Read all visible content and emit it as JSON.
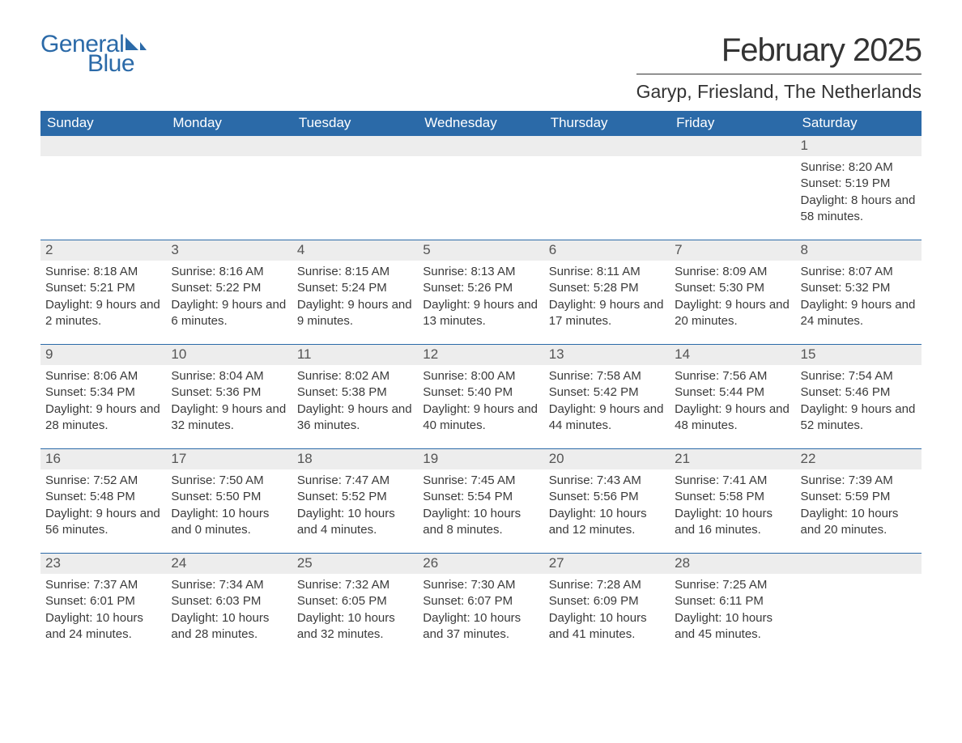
{
  "brand": {
    "word1": "General",
    "word2": "Blue"
  },
  "title": "February 2025",
  "location": "Garyp, Friesland, The Netherlands",
  "colors": {
    "header_bg": "#2b6aa8",
    "header_text": "#ffffff",
    "day_strip_bg": "#ededed",
    "text": "#3a3a3a",
    "divider": "#333333",
    "page_bg": "#ffffff"
  },
  "weekdays": [
    "Sunday",
    "Monday",
    "Tuesday",
    "Wednesday",
    "Thursday",
    "Friday",
    "Saturday"
  ],
  "weeks": [
    [
      {
        "day": "",
        "lines": []
      },
      {
        "day": "",
        "lines": []
      },
      {
        "day": "",
        "lines": []
      },
      {
        "day": "",
        "lines": []
      },
      {
        "day": "",
        "lines": []
      },
      {
        "day": "",
        "lines": []
      },
      {
        "day": "1",
        "lines": [
          "Sunrise: 8:20 AM",
          "Sunset: 5:19 PM",
          "Daylight: 8 hours and 58 minutes."
        ]
      }
    ],
    [
      {
        "day": "2",
        "lines": [
          "Sunrise: 8:18 AM",
          "Sunset: 5:21 PM",
          "Daylight: 9 hours and 2 minutes."
        ]
      },
      {
        "day": "3",
        "lines": [
          "Sunrise: 8:16 AM",
          "Sunset: 5:22 PM",
          "Daylight: 9 hours and 6 minutes."
        ]
      },
      {
        "day": "4",
        "lines": [
          "Sunrise: 8:15 AM",
          "Sunset: 5:24 PM",
          "Daylight: 9 hours and 9 minutes."
        ]
      },
      {
        "day": "5",
        "lines": [
          "Sunrise: 8:13 AM",
          "Sunset: 5:26 PM",
          "Daylight: 9 hours and 13 minutes."
        ]
      },
      {
        "day": "6",
        "lines": [
          "Sunrise: 8:11 AM",
          "Sunset: 5:28 PM",
          "Daylight: 9 hours and 17 minutes."
        ]
      },
      {
        "day": "7",
        "lines": [
          "Sunrise: 8:09 AM",
          "Sunset: 5:30 PM",
          "Daylight: 9 hours and 20 minutes."
        ]
      },
      {
        "day": "8",
        "lines": [
          "Sunrise: 8:07 AM",
          "Sunset: 5:32 PM",
          "Daylight: 9 hours and 24 minutes."
        ]
      }
    ],
    [
      {
        "day": "9",
        "lines": [
          "Sunrise: 8:06 AM",
          "Sunset: 5:34 PM",
          "Daylight: 9 hours and 28 minutes."
        ]
      },
      {
        "day": "10",
        "lines": [
          "Sunrise: 8:04 AM",
          "Sunset: 5:36 PM",
          "Daylight: 9 hours and 32 minutes."
        ]
      },
      {
        "day": "11",
        "lines": [
          "Sunrise: 8:02 AM",
          "Sunset: 5:38 PM",
          "Daylight: 9 hours and 36 minutes."
        ]
      },
      {
        "day": "12",
        "lines": [
          "Sunrise: 8:00 AM",
          "Sunset: 5:40 PM",
          "Daylight: 9 hours and 40 minutes."
        ]
      },
      {
        "day": "13",
        "lines": [
          "Sunrise: 7:58 AM",
          "Sunset: 5:42 PM",
          "Daylight: 9 hours and 44 minutes."
        ]
      },
      {
        "day": "14",
        "lines": [
          "Sunrise: 7:56 AM",
          "Sunset: 5:44 PM",
          "Daylight: 9 hours and 48 minutes."
        ]
      },
      {
        "day": "15",
        "lines": [
          "Sunrise: 7:54 AM",
          "Sunset: 5:46 PM",
          "Daylight: 9 hours and 52 minutes."
        ]
      }
    ],
    [
      {
        "day": "16",
        "lines": [
          "Sunrise: 7:52 AM",
          "Sunset: 5:48 PM",
          "Daylight: 9 hours and 56 minutes."
        ]
      },
      {
        "day": "17",
        "lines": [
          "Sunrise: 7:50 AM",
          "Sunset: 5:50 PM",
          "Daylight: 10 hours and 0 minutes."
        ]
      },
      {
        "day": "18",
        "lines": [
          "Sunrise: 7:47 AM",
          "Sunset: 5:52 PM",
          "Daylight: 10 hours and 4 minutes."
        ]
      },
      {
        "day": "19",
        "lines": [
          "Sunrise: 7:45 AM",
          "Sunset: 5:54 PM",
          "Daylight: 10 hours and 8 minutes."
        ]
      },
      {
        "day": "20",
        "lines": [
          "Sunrise: 7:43 AM",
          "Sunset: 5:56 PM",
          "Daylight: 10 hours and 12 minutes."
        ]
      },
      {
        "day": "21",
        "lines": [
          "Sunrise: 7:41 AM",
          "Sunset: 5:58 PM",
          "Daylight: 10 hours and 16 minutes."
        ]
      },
      {
        "day": "22",
        "lines": [
          "Sunrise: 7:39 AM",
          "Sunset: 5:59 PM",
          "Daylight: 10 hours and 20 minutes."
        ]
      }
    ],
    [
      {
        "day": "23",
        "lines": [
          "Sunrise: 7:37 AM",
          "Sunset: 6:01 PM",
          "Daylight: 10 hours and 24 minutes."
        ]
      },
      {
        "day": "24",
        "lines": [
          "Sunrise: 7:34 AM",
          "Sunset: 6:03 PM",
          "Daylight: 10 hours and 28 minutes."
        ]
      },
      {
        "day": "25",
        "lines": [
          "Sunrise: 7:32 AM",
          "Sunset: 6:05 PM",
          "Daylight: 10 hours and 32 minutes."
        ]
      },
      {
        "day": "26",
        "lines": [
          "Sunrise: 7:30 AM",
          "Sunset: 6:07 PM",
          "Daylight: 10 hours and 37 minutes."
        ]
      },
      {
        "day": "27",
        "lines": [
          "Sunrise: 7:28 AM",
          "Sunset: 6:09 PM",
          "Daylight: 10 hours and 41 minutes."
        ]
      },
      {
        "day": "28",
        "lines": [
          "Sunrise: 7:25 AM",
          "Sunset: 6:11 PM",
          "Daylight: 10 hours and 45 minutes."
        ]
      },
      {
        "day": "",
        "lines": []
      }
    ]
  ]
}
